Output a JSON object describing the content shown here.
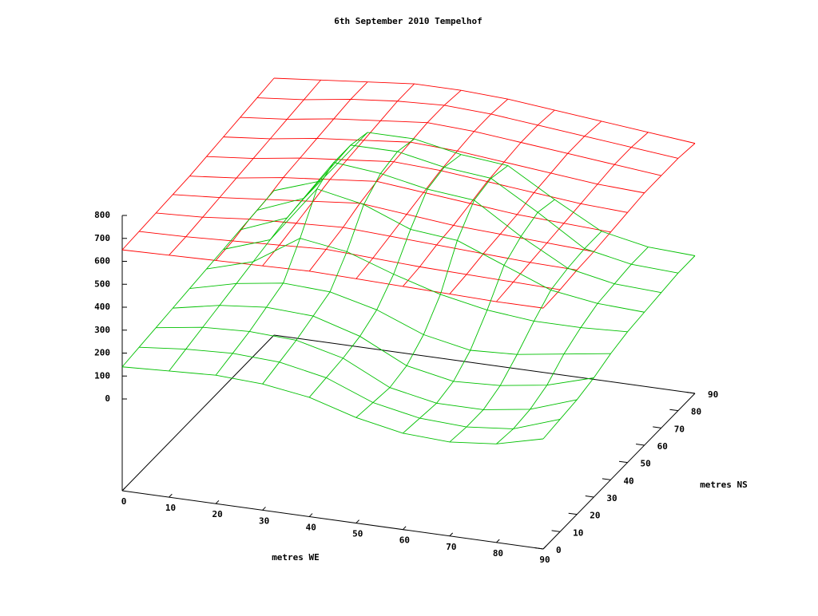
{
  "chart_data": {
    "type": "surface",
    "title": "6th September 2010 Tempelhof",
    "xlabel": "metres WE",
    "ylabel": "metres NS",
    "x": [
      0,
      10,
      20,
      30,
      40,
      50,
      60,
      70,
      80,
      90
    ],
    "y": [
      0,
      10,
      20,
      30,
      40,
      50,
      60,
      70,
      80,
      90
    ],
    "xlim": [
      0,
      90
    ],
    "ylim": [
      0,
      90
    ],
    "zlim": [
      -400,
      800
    ],
    "xticks": [
      0,
      10,
      20,
      30,
      40,
      50,
      60,
      70,
      80,
      90
    ],
    "yticks": [
      0,
      10,
      20,
      30,
      40,
      50,
      60,
      70,
      80,
      90
    ],
    "zticks": [
      0,
      100,
      200,
      300,
      400,
      500,
      600,
      700,
      800
    ],
    "series": [
      {
        "color": "#ff0000",
        "z": [
          [
            650,
            655,
            660,
            665,
            670,
            665,
            660,
            655,
            650,
            650
          ],
          [
            655,
            660,
            670,
            680,
            690,
            680,
            670,
            665,
            660,
            655
          ],
          [
            660,
            670,
            690,
            700,
            710,
            700,
            690,
            680,
            670,
            665
          ],
          [
            665,
            680,
            700,
            720,
            740,
            720,
            700,
            690,
            680,
            670
          ],
          [
            670,
            690,
            720,
            740,
            760,
            740,
            720,
            700,
            690,
            680
          ],
          [
            680,
            700,
            730,
            750,
            770,
            760,
            740,
            720,
            700,
            690
          ],
          [
            690,
            710,
            740,
            760,
            780,
            770,
            750,
            730,
            710,
            700
          ],
          [
            700,
            720,
            750,
            770,
            790,
            780,
            760,
            740,
            720,
            700
          ],
          [
            710,
            730,
            760,
            780,
            790,
            780,
            760,
            740,
            720,
            700
          ],
          [
            720,
            740,
            760,
            780,
            780,
            770,
            750,
            730,
            710,
            690
          ]
        ]
      },
      {
        "color": "#00c000",
        "z": [
          [
            140,
            150,
            160,
            150,
            120,
            60,
            20,
            10,
            30,
            80
          ],
          [
            150,
            170,
            180,
            170,
            130,
            50,
            10,
            0,
            20,
            90
          ],
          [
            160,
            190,
            200,
            190,
            140,
            40,
            0,
            0,
            30,
            100
          ],
          [
            170,
            210,
            230,
            220,
            160,
            60,
            20,
            30,
            60,
            120
          ],
          [
            180,
            230,
            260,
            250,
            200,
            120,
            80,
            90,
            120,
            150
          ],
          [
            190,
            250,
            380,
            350,
            280,
            220,
            180,
            160,
            160,
            170
          ],
          [
            200,
            270,
            520,
            480,
            400,
            380,
            300,
            220,
            190,
            180
          ],
          [
            210,
            290,
            560,
            540,
            500,
            480,
            350,
            240,
            200,
            190
          ],
          [
            220,
            300,
            560,
            560,
            520,
            500,
            380,
            250,
            210,
            200
          ],
          [
            230,
            300,
            540,
            540,
            500,
            480,
            360,
            250,
            210,
            200
          ]
        ]
      }
    ]
  }
}
